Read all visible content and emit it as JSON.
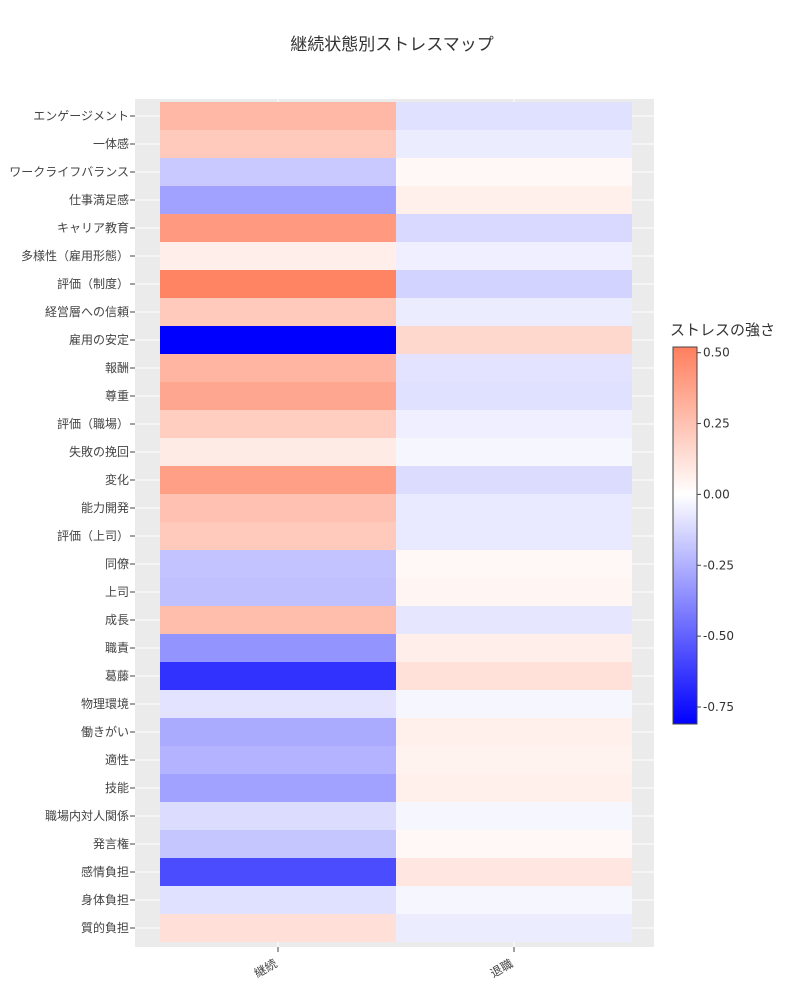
{
  "chart_data": {
    "type": "heatmap",
    "title": "継続状態別ストレスマップ",
    "columns": [
      "継続",
      "退職"
    ],
    "rows": [
      "エンゲージメント",
      "一体感",
      "ワークライフバランス",
      "仕事満足感",
      "キャリア教育",
      "多様性（雇用形態）",
      "評価（制度）",
      "経営層への信頼",
      "雇用の安定",
      "報酬",
      "尊重",
      "評価（職場）",
      "失敗の挽回",
      "変化",
      "能力開発",
      "評価（上司）",
      "同僚",
      "上司",
      "成長",
      "職責",
      "葛藤",
      "物理環境",
      "働きがい",
      "適性",
      "技能",
      "職場内対人関係",
      "発言権",
      "感情負担",
      "身体負担",
      "質的負担"
    ],
    "values": [
      [
        0.29,
        -0.1
      ],
      [
        0.22,
        -0.06
      ],
      [
        -0.17,
        0.03
      ],
      [
        -0.3,
        0.06
      ],
      [
        0.41,
        -0.12
      ],
      [
        0.07,
        -0.05
      ],
      [
        0.5,
        -0.14
      ],
      [
        0.22,
        -0.06
      ],
      [
        -0.81,
        0.16
      ],
      [
        0.3,
        -0.09
      ],
      [
        0.36,
        -0.1
      ],
      [
        0.2,
        -0.05
      ],
      [
        0.08,
        -0.03
      ],
      [
        0.39,
        -0.11
      ],
      [
        0.25,
        -0.07
      ],
      [
        0.22,
        -0.07
      ],
      [
        -0.19,
        0.03
      ],
      [
        -0.2,
        0.04
      ],
      [
        0.27,
        -0.08
      ],
      [
        -0.34,
        0.07
      ],
      [
        -0.65,
        0.12
      ],
      [
        -0.09,
        -0.03
      ],
      [
        -0.27,
        0.06
      ],
      [
        -0.24,
        0.05
      ],
      [
        -0.3,
        0.06
      ],
      [
        -0.11,
        -0.03
      ],
      [
        -0.18,
        0.03
      ],
      [
        -0.57,
        0.1
      ],
      [
        -0.1,
        -0.03
      ],
      [
        0.13,
        -0.06
      ]
    ],
    "colorbar": {
      "title": "ストレスの強さ",
      "min": -0.81,
      "max": 0.52,
      "ticks": [
        0.5,
        0.25,
        0.0,
        -0.25,
        -0.5,
        -0.75
      ],
      "tick_labels": [
        "0.50",
        "0.25",
        "0.00",
        "-0.25",
        "-0.50",
        "-0.75"
      ],
      "colors": {
        "low": "#0000ff",
        "mid": "#ffffff",
        "high": "#ff7f5e"
      }
    },
    "legend_position": "right"
  }
}
